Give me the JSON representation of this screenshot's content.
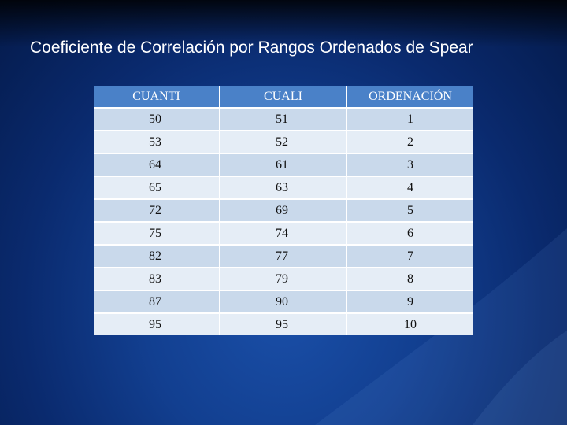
{
  "slide": {
    "title": "Coeficiente de Correlación por Rangos Ordenados de Spear"
  },
  "table": {
    "headers": [
      "CUANTI",
      "CUALI",
      "ORDENACIÓN"
    ],
    "rows": [
      [
        "50",
        "51",
        "1"
      ],
      [
        "53",
        "52",
        "2"
      ],
      [
        "64",
        "61",
        "3"
      ],
      [
        "65",
        "63",
        "4"
      ],
      [
        "72",
        "69",
        "5"
      ],
      [
        "75",
        "74",
        "6"
      ],
      [
        "82",
        "77",
        "7"
      ],
      [
        "83",
        "79",
        "8"
      ],
      [
        "87",
        "90",
        "9"
      ],
      [
        "95",
        "95",
        "10"
      ]
    ]
  },
  "colors": {
    "background": "#123f90",
    "header_fill": "#4a81c8",
    "row_fill_odd": "#c9d9eb",
    "row_fill_even": "#e5edf6"
  }
}
